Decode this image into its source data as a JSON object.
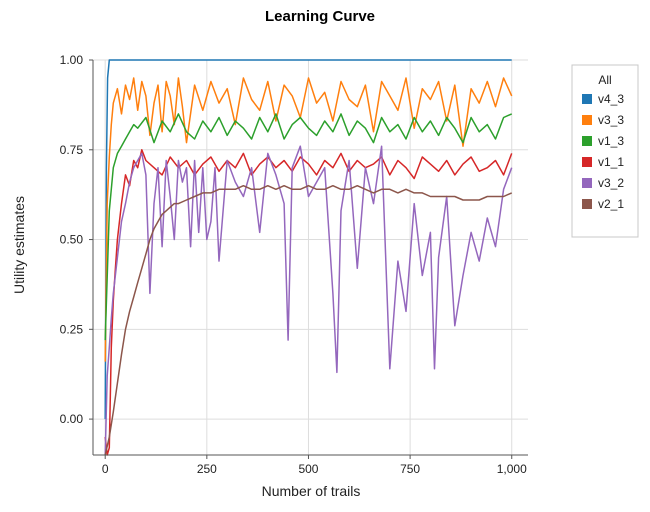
{
  "chart_data": {
    "type": "line",
    "title": "Learning Curve",
    "xlabel": "Number of trails",
    "ylabel": "Utility estimates",
    "xlim": [
      -30,
      1040
    ],
    "ylim": [
      -0.1,
      1.0
    ],
    "xticks": [
      0,
      250,
      500,
      750,
      1000
    ],
    "xtick_labels": [
      "0",
      "250",
      "500",
      "750",
      "1,000"
    ],
    "yticks": [
      0.0,
      0.25,
      0.5,
      0.75,
      1.0
    ],
    "ytick_labels": [
      "0.00",
      "0.25",
      "0.50",
      "0.75",
      "1.00"
    ],
    "grid": true,
    "legend": {
      "title": "All",
      "position": "right"
    },
    "series": [
      {
        "name": "v4_3",
        "color": "#1f77b4",
        "x": [
          0,
          3,
          6,
          10,
          1000
        ],
        "y": [
          0.0,
          0.7,
          0.95,
          1.0,
          1.0
        ]
      },
      {
        "name": "v3_3",
        "color": "#ff7f0e",
        "x": [
          0,
          5,
          10,
          15,
          20,
          30,
          40,
          50,
          60,
          70,
          80,
          90,
          100,
          110,
          120,
          130,
          140,
          150,
          160,
          170,
          180,
          190,
          200,
          220,
          240,
          260,
          280,
          300,
          320,
          340,
          360,
          380,
          400,
          420,
          440,
          460,
          480,
          500,
          520,
          540,
          560,
          580,
          600,
          620,
          640,
          660,
          680,
          700,
          720,
          740,
          760,
          780,
          800,
          820,
          840,
          860,
          880,
          900,
          920,
          940,
          960,
          980,
          1000
        ],
        "y": [
          0.16,
          0.6,
          0.73,
          0.82,
          0.88,
          0.92,
          0.85,
          0.93,
          0.89,
          0.95,
          0.86,
          0.94,
          0.9,
          0.79,
          0.88,
          0.93,
          0.8,
          0.94,
          0.9,
          0.82,
          0.95,
          0.87,
          0.77,
          0.93,
          0.86,
          0.94,
          0.88,
          0.92,
          0.82,
          0.95,
          0.89,
          0.86,
          0.94,
          0.83,
          0.93,
          0.9,
          0.84,
          0.95,
          0.88,
          0.91,
          0.83,
          0.94,
          0.89,
          0.87,
          0.93,
          0.8,
          0.94,
          0.9,
          0.86,
          0.95,
          0.81,
          0.92,
          0.89,
          0.94,
          0.83,
          0.93,
          0.76,
          0.92,
          0.88,
          0.94,
          0.87,
          0.95,
          0.9
        ]
      },
      {
        "name": "v1_3",
        "color": "#2ca02c",
        "x": [
          0,
          10,
          20,
          30,
          40,
          50,
          60,
          70,
          80,
          100,
          120,
          140,
          160,
          180,
          200,
          220,
          240,
          260,
          280,
          300,
          320,
          340,
          360,
          380,
          400,
          420,
          440,
          460,
          480,
          500,
          520,
          540,
          560,
          580,
          600,
          620,
          640,
          660,
          680,
          700,
          720,
          740,
          760,
          780,
          800,
          820,
          840,
          860,
          880,
          900,
          920,
          940,
          960,
          980,
          1000
        ],
        "y": [
          0.22,
          0.58,
          0.7,
          0.74,
          0.76,
          0.78,
          0.8,
          0.82,
          0.81,
          0.84,
          0.77,
          0.83,
          0.8,
          0.85,
          0.8,
          0.78,
          0.83,
          0.8,
          0.84,
          0.79,
          0.83,
          0.81,
          0.78,
          0.84,
          0.8,
          0.85,
          0.78,
          0.82,
          0.84,
          0.81,
          0.79,
          0.83,
          0.8,
          0.85,
          0.79,
          0.83,
          0.81,
          0.77,
          0.84,
          0.8,
          0.82,
          0.78,
          0.84,
          0.8,
          0.83,
          0.79,
          0.84,
          0.81,
          0.77,
          0.84,
          0.8,
          0.82,
          0.78,
          0.84,
          0.85
        ]
      },
      {
        "name": "v1_1",
        "color": "#d62728",
        "x": [
          0,
          5,
          10,
          15,
          20,
          25,
          30,
          40,
          50,
          60,
          70,
          80,
          90,
          100,
          120,
          140,
          160,
          180,
          200,
          220,
          240,
          260,
          280,
          300,
          320,
          340,
          360,
          380,
          400,
          420,
          440,
          460,
          480,
          500,
          520,
          540,
          560,
          580,
          600,
          620,
          640,
          660,
          680,
          700,
          720,
          740,
          760,
          780,
          800,
          820,
          840,
          860,
          880,
          900,
          920,
          940,
          960,
          980,
          1000
        ],
        "y": [
          -0.05,
          -0.1,
          -0.08,
          0.2,
          0.33,
          0.42,
          0.5,
          0.6,
          0.68,
          0.65,
          0.72,
          0.7,
          0.75,
          0.72,
          0.7,
          0.68,
          0.73,
          0.7,
          0.72,
          0.68,
          0.71,
          0.73,
          0.69,
          0.72,
          0.7,
          0.74,
          0.68,
          0.71,
          0.73,
          0.7,
          0.72,
          0.69,
          0.73,
          0.71,
          0.68,
          0.72,
          0.7,
          0.74,
          0.69,
          0.72,
          0.7,
          0.71,
          0.73,
          0.68,
          0.72,
          0.7,
          0.67,
          0.73,
          0.71,
          0.69,
          0.72,
          0.68,
          0.71,
          0.73,
          0.69,
          0.7,
          0.72,
          0.68,
          0.74
        ]
      },
      {
        "name": "v3_2",
        "color": "#9467bd",
        "x": [
          0,
          5,
          10,
          15,
          20,
          30,
          40,
          50,
          60,
          70,
          80,
          90,
          100,
          110,
          120,
          130,
          140,
          150,
          160,
          170,
          180,
          190,
          200,
          210,
          220,
          230,
          240,
          250,
          260,
          270,
          280,
          300,
          320,
          340,
          360,
          380,
          400,
          420,
          440,
          450,
          460,
          480,
          500,
          520,
          540,
          560,
          570,
          580,
          600,
          620,
          640,
          660,
          680,
          700,
          720,
          740,
          760,
          780,
          800,
          810,
          820,
          840,
          860,
          880,
          900,
          920,
          940,
          960,
          980,
          1000
        ],
        "y": [
          -0.1,
          0.12,
          0.2,
          0.28,
          0.35,
          0.45,
          0.55,
          0.6,
          0.66,
          0.7,
          0.72,
          0.74,
          0.68,
          0.35,
          0.6,
          0.7,
          0.48,
          0.72,
          0.62,
          0.5,
          0.72,
          0.66,
          0.7,
          0.48,
          0.72,
          0.52,
          0.7,
          0.5,
          0.55,
          0.7,
          0.44,
          0.72,
          0.66,
          0.62,
          0.7,
          0.52,
          0.74,
          0.68,
          0.6,
          0.22,
          0.7,
          0.76,
          0.62,
          0.66,
          0.7,
          0.35,
          0.13,
          0.58,
          0.72,
          0.42,
          0.7,
          0.6,
          0.76,
          0.14,
          0.44,
          0.3,
          0.6,
          0.4,
          0.52,
          0.14,
          0.45,
          0.62,
          0.26,
          0.4,
          0.52,
          0.44,
          0.56,
          0.48,
          0.64,
          0.7
        ]
      },
      {
        "name": "v2_1",
        "color": "#8c564b",
        "x": [
          0,
          10,
          20,
          30,
          40,
          50,
          60,
          70,
          80,
          90,
          100,
          110,
          120,
          130,
          140,
          150,
          160,
          170,
          180,
          200,
          220,
          240,
          260,
          280,
          300,
          320,
          340,
          360,
          380,
          400,
          420,
          440,
          460,
          480,
          500,
          520,
          540,
          560,
          580,
          600,
          620,
          640,
          660,
          680,
          700,
          720,
          740,
          760,
          780,
          800,
          820,
          840,
          860,
          880,
          900,
          920,
          940,
          960,
          980,
          1000
        ],
        "y": [
          -0.1,
          -0.05,
          0.02,
          0.1,
          0.18,
          0.25,
          0.3,
          0.34,
          0.38,
          0.42,
          0.46,
          0.5,
          0.53,
          0.55,
          0.57,
          0.58,
          0.59,
          0.6,
          0.6,
          0.61,
          0.62,
          0.63,
          0.63,
          0.64,
          0.64,
          0.64,
          0.65,
          0.64,
          0.64,
          0.65,
          0.64,
          0.65,
          0.64,
          0.64,
          0.65,
          0.64,
          0.64,
          0.65,
          0.64,
          0.64,
          0.65,
          0.64,
          0.63,
          0.64,
          0.64,
          0.63,
          0.64,
          0.63,
          0.63,
          0.62,
          0.62,
          0.62,
          0.62,
          0.61,
          0.61,
          0.61,
          0.62,
          0.62,
          0.62,
          0.63
        ]
      }
    ]
  }
}
